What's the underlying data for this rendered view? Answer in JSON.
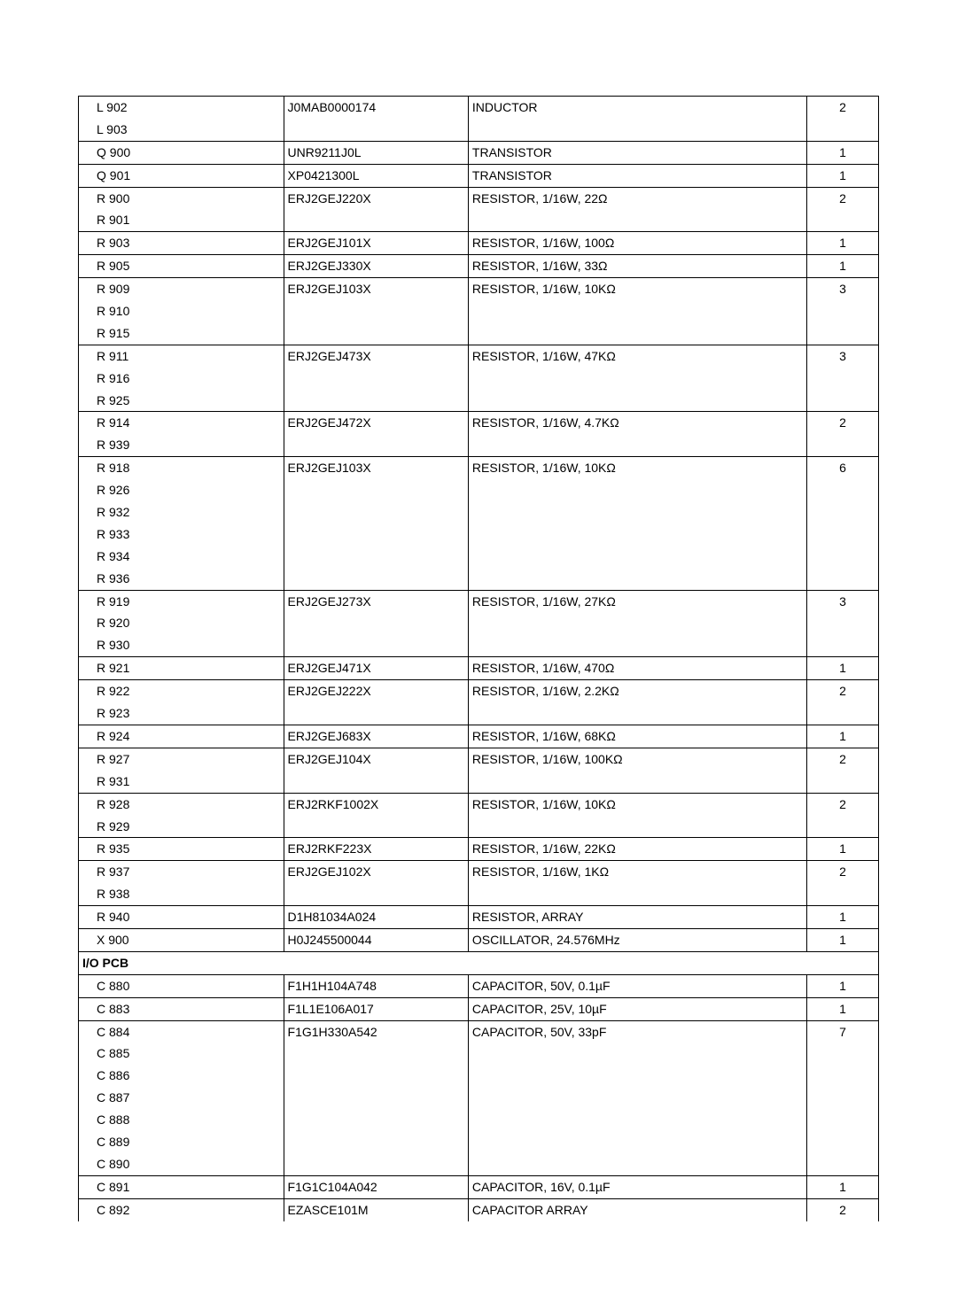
{
  "groups": [
    {
      "refs": [
        "L 902",
        "L 903"
      ],
      "part": "J0MAB0000174",
      "desc": "INDUCTOR",
      "qty": "2"
    },
    {
      "refs": [
        "Q 900"
      ],
      "part": "UNR9211J0L",
      "desc": "TRANSISTOR",
      "qty": "1"
    },
    {
      "refs": [
        "Q 901"
      ],
      "part": "XP0421300L",
      "desc": "TRANSISTOR",
      "qty": "1"
    },
    {
      "refs": [
        "R 900",
        "R 901"
      ],
      "part": "ERJ2GEJ220X",
      "desc": "RESISTOR, 1/16W, 22Ω",
      "qty": "2"
    },
    {
      "refs": [
        "R 903"
      ],
      "part": "ERJ2GEJ101X",
      "desc": "RESISTOR, 1/16W, 100Ω",
      "qty": "1"
    },
    {
      "refs": [
        "R 905"
      ],
      "part": "ERJ2GEJ330X",
      "desc": "RESISTOR, 1/16W, 33Ω",
      "qty": "1"
    },
    {
      "refs": [
        "R 909",
        "R 910",
        "R 915"
      ],
      "part": "ERJ2GEJ103X",
      "desc": "RESISTOR, 1/16W, 10KΩ",
      "qty": "3"
    },
    {
      "refs": [
        "R 911",
        "R 916",
        "R 925"
      ],
      "part": "ERJ2GEJ473X",
      "desc": "RESISTOR, 1/16W, 47KΩ",
      "qty": "3"
    },
    {
      "refs": [
        "R 914",
        "R 939"
      ],
      "part": "ERJ2GEJ472X",
      "desc": "RESISTOR, 1/16W, 4.7KΩ",
      "qty": "2"
    },
    {
      "refs": [
        "R 918",
        "R 926",
        "R 932",
        "R 933",
        "R 934",
        "R 936"
      ],
      "part": "ERJ2GEJ103X",
      "desc": "RESISTOR, 1/16W, 10KΩ",
      "qty": "6"
    },
    {
      "refs": [
        "R 919",
        "R 920",
        "R 930"
      ],
      "part": "ERJ2GEJ273X",
      "desc": "RESISTOR, 1/16W, 27KΩ",
      "qty": "3"
    },
    {
      "refs": [
        "R 921"
      ],
      "part": "ERJ2GEJ471X",
      "desc": "RESISTOR, 1/16W, 470Ω",
      "qty": "1"
    },
    {
      "refs": [
        "R 922",
        "R 923"
      ],
      "part": "ERJ2GEJ222X",
      "desc": "RESISTOR, 1/16W, 2.2KΩ",
      "qty": "2"
    },
    {
      "refs": [
        "R 924"
      ],
      "part": "ERJ2GEJ683X",
      "desc": "RESISTOR, 1/16W, 68KΩ",
      "qty": "1"
    },
    {
      "refs": [
        "R 927",
        "R 931"
      ],
      "part": "ERJ2GEJ104X",
      "desc": "RESISTOR, 1/16W, 100KΩ",
      "qty": "2"
    },
    {
      "refs": [
        "R 928",
        "R 929"
      ],
      "part": "ERJ2RKF1002X",
      "desc": "RESISTOR, 1/16W, 10KΩ",
      "qty": "2"
    },
    {
      "refs": [
        "R 935"
      ],
      "part": "ERJ2RKF223X",
      "desc": "RESISTOR, 1/16W, 22KΩ",
      "qty": "1"
    },
    {
      "refs": [
        "R 937",
        "R 938"
      ],
      "part": "ERJ2GEJ102X",
      "desc": "RESISTOR, 1/16W, 1KΩ",
      "qty": "2"
    },
    {
      "refs": [
        "R 940"
      ],
      "part": "D1H81034A024",
      "desc": "RESISTOR, ARRAY",
      "qty": "1"
    },
    {
      "refs": [
        "X 900"
      ],
      "part": "H0J245500044",
      "desc": "OSCILLATOR, 24.576MHz",
      "qty": "1"
    },
    {
      "section": "I/O PCB"
    },
    {
      "refs": [
        "C 880"
      ],
      "part": "F1H1H104A748",
      "desc": "CAPACITOR, 50V, 0.1µF",
      "qty": "1"
    },
    {
      "refs": [
        "C 883"
      ],
      "part": "F1L1E106A017",
      "desc": "CAPACITOR, 25V, 10µF",
      "qty": "1"
    },
    {
      "refs": [
        "C 884",
        "C 885",
        "C 886",
        "C 887",
        "C 888",
        "C 889",
        "C 890"
      ],
      "part": "F1G1H330A542",
      "desc": "CAPACITOR, 50V, 33pF",
      "qty": "7"
    },
    {
      "refs": [
        "C 891"
      ],
      "part": "F1G1C104A042",
      "desc": "CAPACITOR, 16V, 0.1µF",
      "qty": "1"
    },
    {
      "refs": [
        "C 892"
      ],
      "part": "EZASCE101M",
      "desc": "CAPACITOR ARRAY",
      "qty": "2",
      "open_bottom": true
    }
  ]
}
